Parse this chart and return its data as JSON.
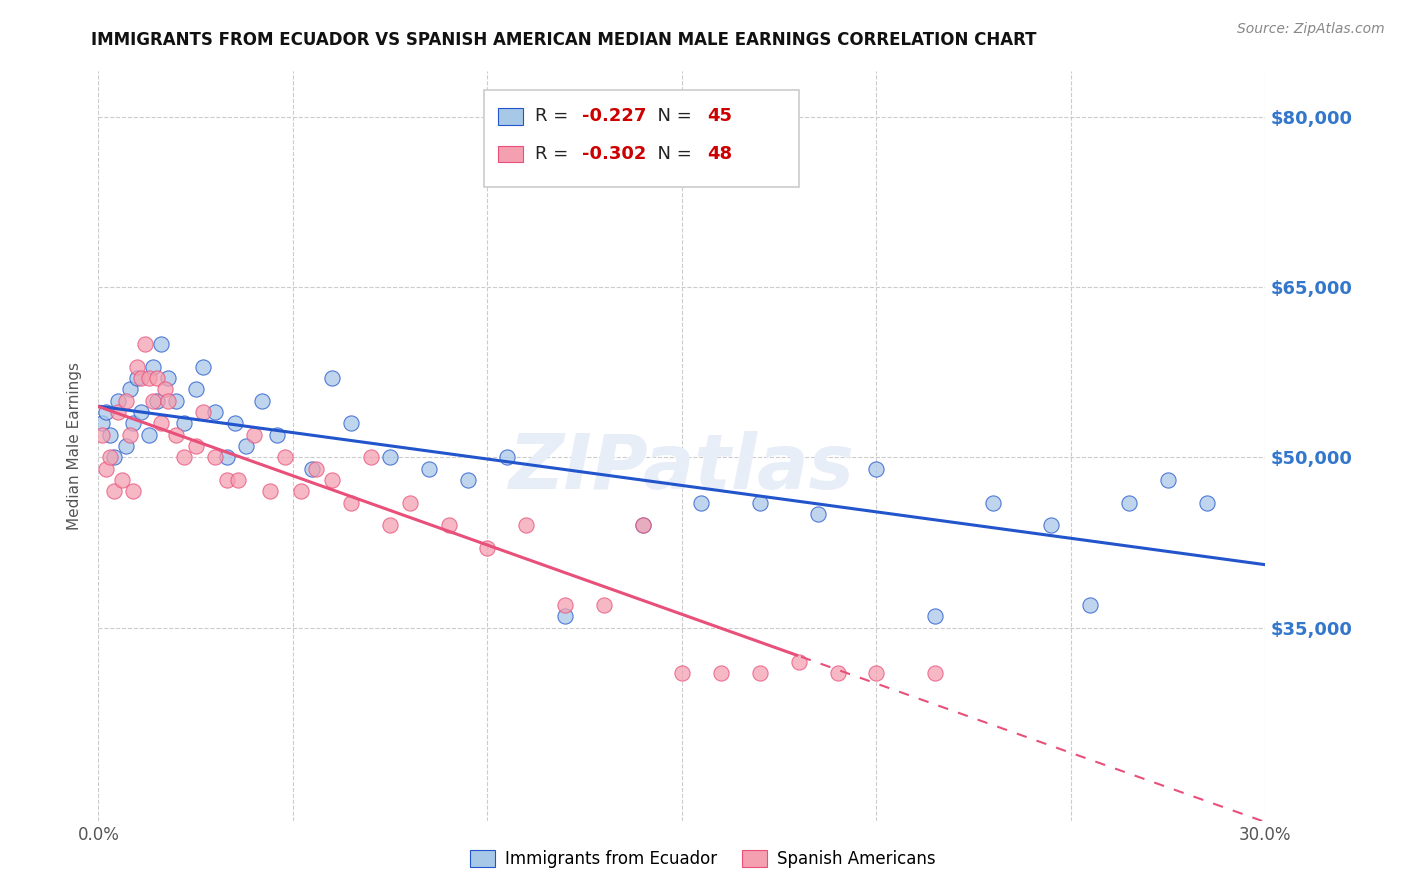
{
  "title": "IMMIGRANTS FROM ECUADOR VS SPANISH AMERICAN MEDIAN MALE EARNINGS CORRELATION CHART",
  "source": "Source: ZipAtlas.com",
  "ylabel": "Median Male Earnings",
  "y_ticks": [
    35000,
    50000,
    65000,
    80000
  ],
  "y_tick_labels": [
    "$35,000",
    "$50,000",
    "$65,000",
    "$80,000"
  ],
  "x_min": 0.0,
  "x_max": 0.3,
  "y_min": 18000,
  "y_max": 84000,
  "watermark": "ZIPatlas",
  "blue_color": "#a8c8e8",
  "pink_color": "#f4a0b0",
  "blue_line_color": "#2255cc",
  "pink_line_color": "#e8507a",
  "ecuador_points_x": [
    0.001,
    0.002,
    0.003,
    0.004,
    0.005,
    0.007,
    0.008,
    0.009,
    0.01,
    0.011,
    0.013,
    0.014,
    0.015,
    0.016,
    0.018,
    0.02,
    0.022,
    0.025,
    0.027,
    0.03,
    0.033,
    0.035,
    0.038,
    0.042,
    0.046,
    0.055,
    0.06,
    0.065,
    0.075,
    0.085,
    0.095,
    0.105,
    0.12,
    0.14,
    0.155,
    0.17,
    0.185,
    0.2,
    0.215,
    0.23,
    0.245,
    0.255,
    0.265,
    0.275,
    0.285
  ],
  "ecuador_points_y": [
    53000,
    54000,
    52000,
    50000,
    55000,
    51000,
    56000,
    53000,
    57000,
    54000,
    52000,
    58000,
    55000,
    60000,
    57000,
    55000,
    53000,
    56000,
    58000,
    54000,
    50000,
    53000,
    51000,
    55000,
    52000,
    49000,
    57000,
    53000,
    50000,
    49000,
    48000,
    50000,
    36000,
    44000,
    46000,
    46000,
    45000,
    49000,
    36000,
    46000,
    44000,
    37000,
    46000,
    48000,
    46000
  ],
  "spanish_points_x": [
    0.001,
    0.002,
    0.003,
    0.004,
    0.005,
    0.006,
    0.007,
    0.008,
    0.009,
    0.01,
    0.011,
    0.012,
    0.013,
    0.014,
    0.015,
    0.016,
    0.017,
    0.018,
    0.02,
    0.022,
    0.025,
    0.027,
    0.03,
    0.033,
    0.036,
    0.04,
    0.044,
    0.048,
    0.052,
    0.056,
    0.06,
    0.065,
    0.07,
    0.075,
    0.08,
    0.09,
    0.1,
    0.11,
    0.12,
    0.13,
    0.14,
    0.15,
    0.16,
    0.17,
    0.18,
    0.19,
    0.2,
    0.215
  ],
  "spanish_points_y": [
    52000,
    49000,
    50000,
    47000,
    54000,
    48000,
    55000,
    52000,
    47000,
    58000,
    57000,
    60000,
    57000,
    55000,
    57000,
    53000,
    56000,
    55000,
    52000,
    50000,
    51000,
    54000,
    50000,
    48000,
    48000,
    52000,
    47000,
    50000,
    47000,
    49000,
    48000,
    46000,
    50000,
    44000,
    46000,
    44000,
    42000,
    44000,
    37000,
    37000,
    44000,
    31000,
    31000,
    31000,
    32000,
    31000,
    31000,
    31000
  ],
  "ecuador_R": "-0.227",
  "ecuador_N": "45",
  "spanish_R": "-0.302",
  "spanish_N": "48"
}
